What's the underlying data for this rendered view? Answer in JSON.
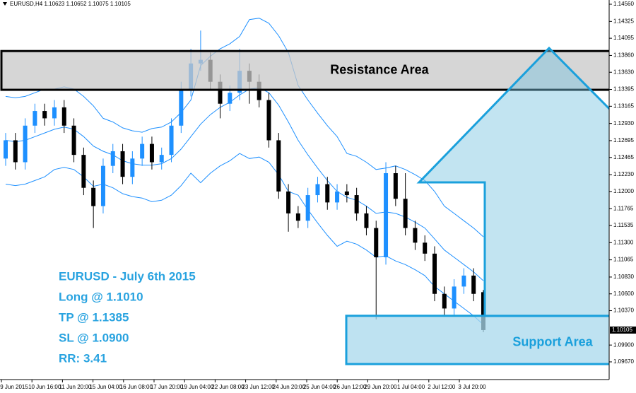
{
  "chart_data": {
    "type": "candlestick",
    "title": "EURUSD,H4  1.10623 1.10652 1.10075 1.10105",
    "up_color": "#1e90ff",
    "down_color": "#000000",
    "open": [
      1.1245,
      1.127,
      1.124,
      1.129,
      1.131,
      1.13,
      1.1315,
      1.129,
      1.125,
      1.1205,
      1.118,
      1.1235,
      1.1255,
      1.122,
      1.1245,
      1.1265,
      1.124,
      1.125,
      1.129,
      1.134,
      1.1375,
      1.138,
      1.135,
      1.132,
      1.1335,
      1.1365,
      1.135,
      1.1325,
      1.127,
      1.12,
      1.117,
      1.116,
      1.1195,
      1.121,
      1.1185,
      1.12,
      1.1195,
      1.117,
      1.115,
      1.111,
      1.1225,
      1.119,
      1.115,
      1.113,
      1.1115,
      1.106,
      1.104,
      1.107,
      1.1085,
      1.10623
    ],
    "high": [
      1.128,
      1.128,
      1.13,
      1.132,
      1.132,
      1.1325,
      1.1325,
      1.13,
      1.126,
      1.1215,
      1.1245,
      1.1265,
      1.1265,
      1.1255,
      1.1275,
      1.1275,
      1.126,
      1.13,
      1.135,
      1.1395,
      1.142,
      1.139,
      1.136,
      1.1345,
      1.1395,
      1.1375,
      1.136,
      1.1335,
      1.128,
      1.121,
      1.118,
      1.1205,
      1.122,
      1.122,
      1.121,
      1.121,
      1.1205,
      1.118,
      1.116,
      1.124,
      1.1235,
      1.1225,
      1.116,
      1.114,
      1.1125,
      1.107,
      1.108,
      1.1095,
      1.1095,
      1.10652
    ],
    "low": [
      1.1235,
      1.123,
      1.123,
      1.128,
      1.129,
      1.129,
      1.128,
      1.124,
      1.1195,
      1.115,
      1.117,
      1.1225,
      1.121,
      1.121,
      1.1235,
      1.123,
      1.123,
      1.124,
      1.128,
      1.133,
      1.1365,
      1.134,
      1.13,
      1.131,
      1.1325,
      1.132,
      1.1315,
      1.126,
      1.119,
      1.1145,
      1.115,
      1.115,
      1.1185,
      1.1175,
      1.1175,
      1.1185,
      1.116,
      1.114,
      1.1025,
      1.11,
      1.118,
      1.114,
      1.112,
      1.1105,
      1.105,
      1.103,
      1.103,
      1.106,
      1.105,
      1.10075
    ],
    "close": [
      1.127,
      1.124,
      1.129,
      1.131,
      1.13,
      1.1315,
      1.129,
      1.125,
      1.1205,
      1.118,
      1.1235,
      1.1255,
      1.122,
      1.1245,
      1.1265,
      1.124,
      1.125,
      1.129,
      1.134,
      1.1375,
      1.138,
      1.135,
      1.132,
      1.1335,
      1.1365,
      1.135,
      1.1325,
      1.127,
      1.12,
      1.117,
      1.116,
      1.1195,
      1.121,
      1.1185,
      1.12,
      1.1195,
      1.117,
      1.115,
      1.111,
      1.1225,
      1.119,
      1.115,
      1.113,
      1.1115,
      1.106,
      1.104,
      1.107,
      1.1085,
      1.106,
      1.10105
    ],
    "bands": [
      {
        "color": "#1e90ff",
        "values": [
          1.133,
          1.1328,
          1.133,
          1.1335,
          1.134,
          1.134,
          1.1343,
          1.134,
          1.133,
          1.1317,
          1.13,
          1.1295,
          1.1287,
          1.1283,
          1.1281,
          1.1286,
          1.1288,
          1.1295,
          1.1308,
          1.1325,
          1.1372,
          1.1385,
          1.1395,
          1.1402,
          1.1412,
          1.1435,
          1.1437,
          1.143,
          1.1413,
          1.139,
          1.1345,
          1.1325,
          1.1307,
          1.129,
          1.1275,
          1.1252,
          1.1248,
          1.124,
          1.123,
          1.1232,
          1.1235,
          1.123,
          1.1223,
          1.1215,
          1.12,
          1.118,
          1.117,
          1.116,
          1.115,
          1.1138
        ]
      },
      {
        "color": "#1e90ff",
        "values": [
          1.127,
          1.1268,
          1.127,
          1.1275,
          1.128,
          1.1285,
          1.1288,
          1.1285,
          1.1275,
          1.1262,
          1.1255,
          1.125,
          1.1242,
          1.1238,
          1.1236,
          1.1236,
          1.1238,
          1.1245,
          1.1258,
          1.1275,
          1.1292,
          1.1305,
          1.1315,
          1.1322,
          1.1332,
          1.134,
          1.1342,
          1.1335,
          1.1318,
          1.1295,
          1.127,
          1.125,
          1.1232,
          1.1215,
          1.12,
          1.1192,
          1.1188,
          1.118,
          1.117,
          1.1172,
          1.117,
          1.1165,
          1.1158,
          1.115,
          1.1135,
          1.112,
          1.111,
          1.11,
          1.109,
          1.1078
        ]
      },
      {
        "color": "#1e90ff",
        "values": [
          1.121,
          1.1208,
          1.121,
          1.1215,
          1.122,
          1.123,
          1.1233,
          1.123,
          1.122,
          1.1207,
          1.121,
          1.1205,
          1.1197,
          1.1193,
          1.1191,
          1.1186,
          1.1188,
          1.1195,
          1.1208,
          1.1225,
          1.1212,
          1.1225,
          1.1235,
          1.1242,
          1.1252,
          1.1245,
          1.1247,
          1.124,
          1.1223,
          1.12,
          1.1195,
          1.1175,
          1.1157,
          1.114,
          1.1125,
          1.1132,
          1.1128,
          1.112,
          1.111,
          1.1112,
          1.1105,
          1.11,
          1.1093,
          1.1085,
          1.107,
          1.106,
          1.105,
          1.104,
          1.103,
          1.1018
        ]
      }
    ],
    "ylim": [
      1.09428,
      1.14618
    ],
    "yticks": [
      {
        "value": 1.1456,
        "label": "1.14560"
      },
      {
        "value": 1.14325,
        "label": "1.14325"
      },
      {
        "value": 1.14095,
        "label": "1.14095"
      },
      {
        "value": 1.1386,
        "label": "1.13860"
      },
      {
        "value": 1.1363,
        "label": "1.13630"
      },
      {
        "value": 1.13395,
        "label": "1.13395"
      },
      {
        "value": 1.13165,
        "label": "1.13165"
      },
      {
        "value": 1.1293,
        "label": "1.12930"
      },
      {
        "value": 1.12695,
        "label": "1.12695"
      },
      {
        "value": 1.12465,
        "label": "1.12465"
      },
      {
        "value": 1.1223,
        "label": "1.12230"
      },
      {
        "value": 1.12,
        "label": "1.12000"
      },
      {
        "value": 1.11765,
        "label": "1.11765"
      },
      {
        "value": 1.11535,
        "label": "1.11535"
      },
      {
        "value": 1.113,
        "label": "1.11300"
      },
      {
        "value": 1.11065,
        "label": "1.11065"
      },
      {
        "value": 1.1083,
        "label": "1.10830"
      },
      {
        "value": 1.106,
        "label": "1.10600"
      },
      {
        "value": 1.1037,
        "label": "1.10370"
      },
      {
        "value": 1.099,
        "label": "1.09900"
      },
      {
        "value": 1.0967,
        "label": "1.09670"
      }
    ],
    "current_price": {
      "value": 1.10105,
      "label": "1.10105"
    },
    "x_labels": [
      "9 Jun 2015",
      "10 Jun 16:00",
      "11 Jun 20:00",
      "15 Jun 04:00",
      "16 Jun 08:00",
      "17 Jun 20:00",
      "19 Jun 04:00",
      "22 Jun 08:00",
      "23 Jun 12:00",
      "24 Jun 20:00",
      "25 Jun 04:00",
      "26 Jun 12:00",
      "29 Jun 20:00",
      "1 Jul 04:00",
      "2 Jul 12:00",
      "3 Jul 20:00"
    ],
    "zones": [
      {
        "label": "Resistance Area",
        "low": 1.1339,
        "high": 1.1392,
        "color": "#c8c8c8",
        "stroke": "#000000"
      },
      {
        "label": "Support Area",
        "low": 1.0964,
        "high": 1.103,
        "color": "#a8d8ec",
        "stroke": "#1aa0dc"
      }
    ],
    "annotations": [
      "EURUSD - July 6th 2015",
      "Long @ 1.1010",
      "TP @ 1.1385",
      "SL @ 1.0900",
      "RR: 3.41"
    ]
  }
}
